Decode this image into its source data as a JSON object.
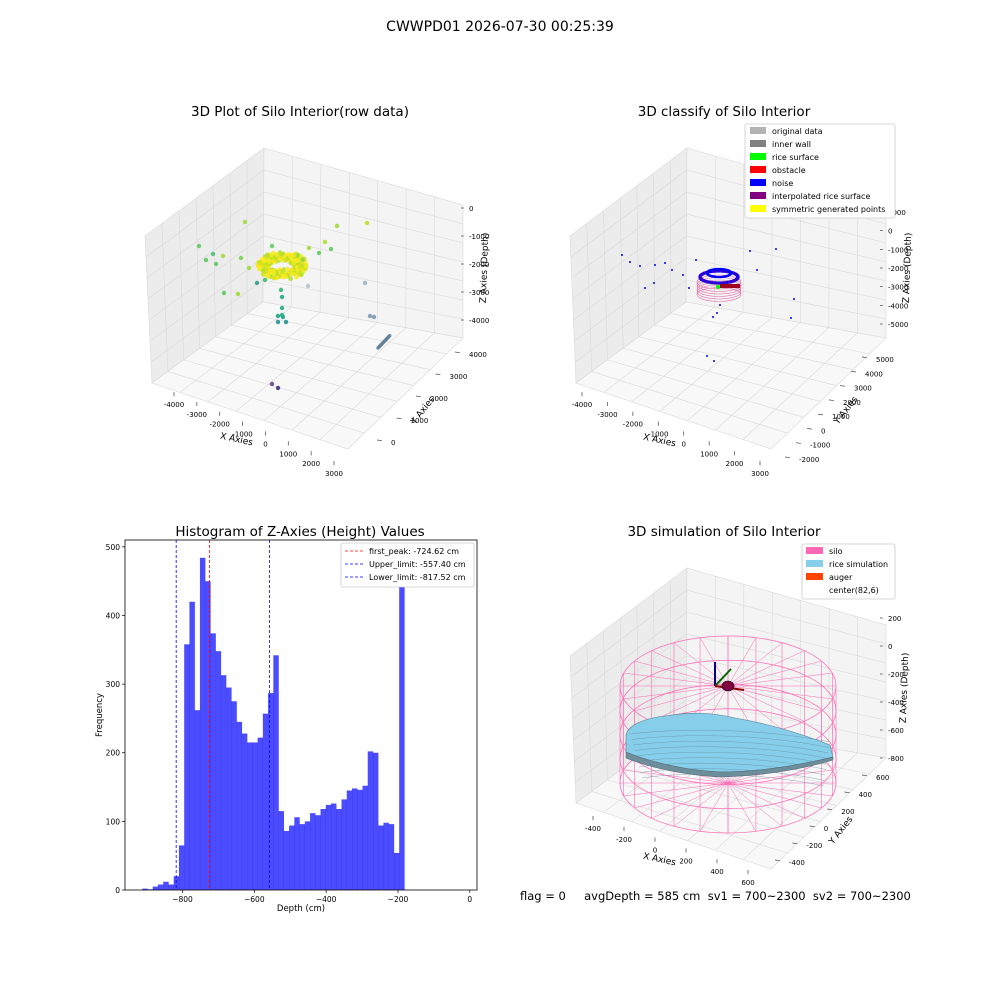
{
  "figure": {
    "suptitle": "CWWPD01 2026-07-30 00:25:39",
    "footer": "flag = 0     avgDepth = 585 cm  sv1 = 700~2300  sv2 = 700~2300"
  },
  "chart_data": [
    {
      "type": "scatter",
      "subtype": "3d",
      "title": "3D Plot of Silo Interior(row data)",
      "xlabel": "X Axies",
      "ylabel": "Y Axies",
      "zlabel": "Z Axies (Depth)",
      "x_ticks": [
        "-4000",
        "-3000",
        "-2000",
        "-1000",
        "0",
        "1000",
        "2000",
        "3000"
      ],
      "y_ticks": [
        "0",
        "1000",
        "2000",
        "3000",
        "4000"
      ],
      "z_ticks": [
        "0",
        "-1000",
        "-2000",
        "-3000",
        "-4000"
      ],
      "xlim": [
        -4500,
        3200
      ],
      "ylim": [
        -500,
        4000
      ],
      "zlim": [
        -5000,
        200
      ],
      "colormap": "viridis",
      "points_approx": [
        {
          "x": 0,
          "y": 0,
          "z": -2200
        },
        {
          "x": 200,
          "y": 200,
          "z": -2100
        },
        {
          "x": -200,
          "y": 100,
          "z": -2300
        },
        {
          "x": -2000,
          "y": 200,
          "z": -2000
        },
        {
          "x": 1500,
          "y": 1800,
          "z": -1500
        },
        {
          "x": 100,
          "y": -200,
          "z": -3200
        },
        {
          "x": 2200,
          "y": 3300,
          "z": -3700
        },
        {
          "x": 0,
          "y": 1500,
          "z": -4800
        }
      ]
    },
    {
      "type": "scatter",
      "subtype": "3d",
      "title": "3D classify of Silo Interior",
      "xlabel": "X Axies",
      "ylabel": "Y Axies",
      "zlabel": "Z Axies (Depth)",
      "x_ticks": [
        "-4000",
        "-3000",
        "-2000",
        "-1000",
        "0",
        "1000",
        "2000",
        "3000"
      ],
      "y_ticks": [
        "-2000",
        "-1000",
        "0",
        "1000",
        "2000",
        "3000",
        "4000",
        "5000"
      ],
      "z_ticks": [
        "1000",
        "0",
        "-1000",
        "-2000",
        "-3000",
        "-4000",
        "-5000"
      ],
      "legend": [
        {
          "label": "original data",
          "color": "#b3b3b3"
        },
        {
          "label": "inner wall",
          "color": "#808080"
        },
        {
          "label": "rice surface",
          "color": "#00ff00"
        },
        {
          "label": "obstacle",
          "color": "#ff0000"
        },
        {
          "label": "noise",
          "color": "#0000ff"
        },
        {
          "label": "interpolated rice surface",
          "color": "#800080"
        },
        {
          "label": "symmetric generated points",
          "color": "#ffff00"
        }
      ],
      "legend_loc": "upper right"
    },
    {
      "type": "bar",
      "subtype": "histogram",
      "title": "Histogram of Z-Axies (Height) Values",
      "xlabel": "Depth (cm)",
      "ylabel": "Frequency",
      "xlim": [
        -960,
        20
      ],
      "ylim": [
        0,
        510
      ],
      "x_ticks": [
        -800,
        -600,
        -400,
        -200,
        0
      ],
      "y_ticks": [
        0,
        100,
        200,
        300,
        400,
        500
      ],
      "bin_width": 14.6,
      "bin_start": -912,
      "values": [
        2,
        1,
        5,
        8,
        12,
        8,
        20,
        65,
        358,
        420,
        262,
        484,
        450,
        374,
        348,
        313,
        295,
        275,
        245,
        228,
        215,
        215,
        222,
        257,
        287,
        342,
        115,
        86,
        94,
        106,
        96,
        100,
        112,
        109,
        118,
        124,
        126,
        118,
        132,
        145,
        148,
        146,
        152,
        202,
        200,
        94,
        98,
        96,
        54,
        443
      ],
      "bar_color": "#0000ff",
      "lines": [
        {
          "label": "first_peak: -724.62 cm",
          "x": -724.62,
          "color": "#ff0000"
        },
        {
          "label": "Upper_limit: -557.40 cm",
          "x": -557.4,
          "color": "#0000ff"
        },
        {
          "label": "Lower_limit: -817.52 cm",
          "x": -817.52,
          "color": "#0000ff"
        }
      ],
      "legend_loc": "upper right"
    },
    {
      "type": "area",
      "subtype": "3d-surface",
      "title": "3D simulation of Silo Interior",
      "xlabel": "X Axies",
      "ylabel": "Y Axies",
      "zlabel": "Z Axies (Depth)",
      "x_ticks": [
        "-400",
        "-200",
        "0",
        "200",
        "400",
        "600"
      ],
      "y_ticks": [
        "-400",
        "-200",
        "0",
        "200",
        "400",
        "600"
      ],
      "z_ticks": [
        "200",
        "0",
        "-200",
        "-400",
        "-600",
        "-800"
      ],
      "legend": [
        {
          "label": "silo",
          "color": "#ff69b4"
        },
        {
          "label": "rice simulation",
          "color": "#87ceeb"
        },
        {
          "label": "auger",
          "color": "#ff4500"
        },
        {
          "label": "center(82,6)",
          "color": ""
        }
      ],
      "legend_loc": "upper right"
    }
  ]
}
